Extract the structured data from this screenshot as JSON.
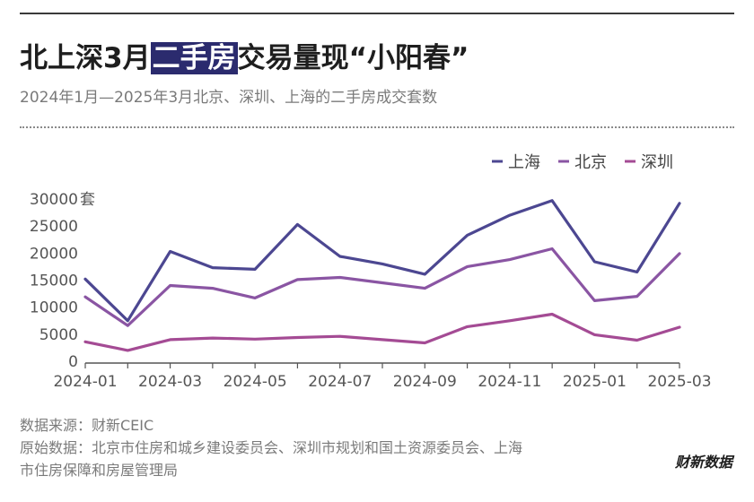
{
  "header": {
    "title_pre": "北上深3月",
    "title_highlight": "二手房",
    "title_post": "交易量现“小阳春”",
    "subtitle": "2024年1月—2025年3月北京、深圳、上海的二手房成交套数"
  },
  "footer": {
    "source_line1": "数据来源：财新CEIC",
    "source_line2": "原始数据：北京市住房和城乡建设委员会、深圳市规划和国土资源委员会、上海",
    "source_line3": "市住房保障和房屋管理局",
    "brand": "财新数据"
  },
  "colors": {
    "shanghai": "#4c4791",
    "beijing": "#8a55a3",
    "shenzhen": "#a44b94"
  },
  "chart_data": {
    "type": "line",
    "x": [
      "2024-01",
      "2024-02",
      "2024-03",
      "2024-04",
      "2024-05",
      "2024-06",
      "2024-07",
      "2024-08",
      "2024-09",
      "2024-10",
      "2024-11",
      "2024-12",
      "2025-01",
      "2025-02",
      "2025-03"
    ],
    "x_tick_labels": [
      "2024-01",
      "2024-03",
      "2024-05",
      "2024-07",
      "2024-09",
      "2024-11",
      "2025-01",
      "2025-03"
    ],
    "y_ticks": [
      0,
      5000,
      10000,
      15000,
      20000,
      25000,
      30000
    ],
    "y_unit": "套",
    "ylim": [
      0,
      30000
    ],
    "legend_position": "top-right",
    "grid": false,
    "series": [
      {
        "name": "上海",
        "color_key": "shanghai",
        "values": [
          15200,
          7500,
          20300,
          17300,
          17000,
          25300,
          19400,
          18000,
          16100,
          23300,
          27000,
          29700,
          18400,
          16500,
          29200
        ]
      },
      {
        "name": "北京",
        "color_key": "beijing",
        "values": [
          11900,
          6600,
          14000,
          13500,
          11700,
          15100,
          15500,
          14500,
          13500,
          17500,
          18800,
          20800,
          11200,
          12000,
          19900
        ]
      },
      {
        "name": "深圳",
        "color_key": "shenzhen",
        "values": [
          3600,
          2000,
          4000,
          4300,
          4100,
          4400,
          4600,
          4000,
          3400,
          6400,
          7500,
          8700,
          4900,
          3900,
          6300
        ]
      }
    ]
  }
}
